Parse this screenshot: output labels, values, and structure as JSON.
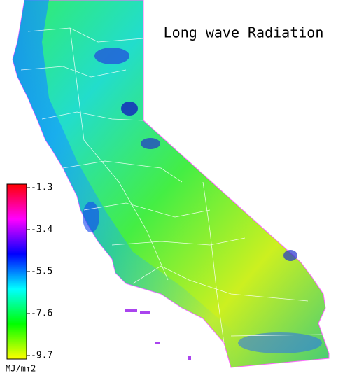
{
  "map": {
    "title": "Long wave Radiation",
    "colorbar": {
      "lim": [
        -9.7,
        -1.3
      ],
      "ticks": [
        -1.3,
        -3.4,
        -5.5,
        -7.6,
        -9.7
      ],
      "unit": "MJ/m↑2",
      "colors": [
        "#ffff00",
        "#00ff00",
        "#00ffff",
        "#0000ff",
        "#ff00ff",
        "#ff0000"
      ]
    }
  }
}
